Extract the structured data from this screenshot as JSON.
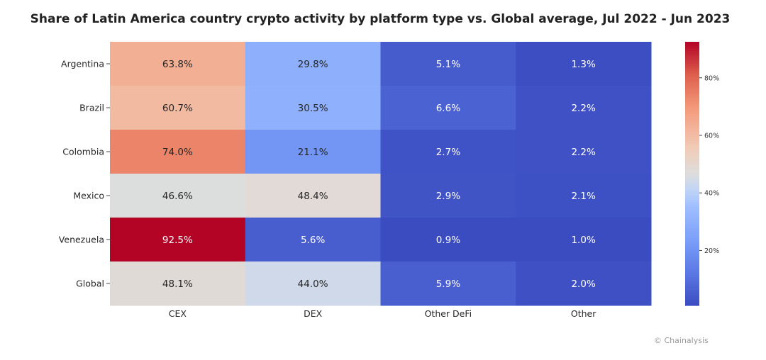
{
  "chart_data": {
    "type": "heatmap",
    "title": "Share of Latin America country crypto activity by platform type vs. Global average, Jul 2022 - Jun 2023",
    "rows": [
      "Argentina",
      "Brazil",
      "Colombia",
      "Mexico",
      "Venezuela",
      "Global"
    ],
    "columns": [
      "CEX",
      "DEX",
      "Other DeFi",
      "Other"
    ],
    "values": [
      [
        63.8,
        29.8,
        5.1,
        1.3
      ],
      [
        60.7,
        30.5,
        6.6,
        2.2
      ],
      [
        74.0,
        21.1,
        2.7,
        2.2
      ],
      [
        46.6,
        48.4,
        2.9,
        2.1
      ],
      [
        92.5,
        5.6,
        0.9,
        1.0
      ],
      [
        48.1,
        44.0,
        5.9,
        2.0
      ]
    ],
    "value_format": "percent, 1 decimal",
    "colormap": "coolwarm",
    "color_range": [
      0.9,
      92.5
    ],
    "colorbar_ticks": [
      "20%",
      "40%",
      "60%",
      "80%"
    ],
    "colorbar_tick_values": [
      20,
      40,
      60,
      80
    ],
    "colorbar_placement": "right"
  },
  "credit": "© Chainalysis"
}
